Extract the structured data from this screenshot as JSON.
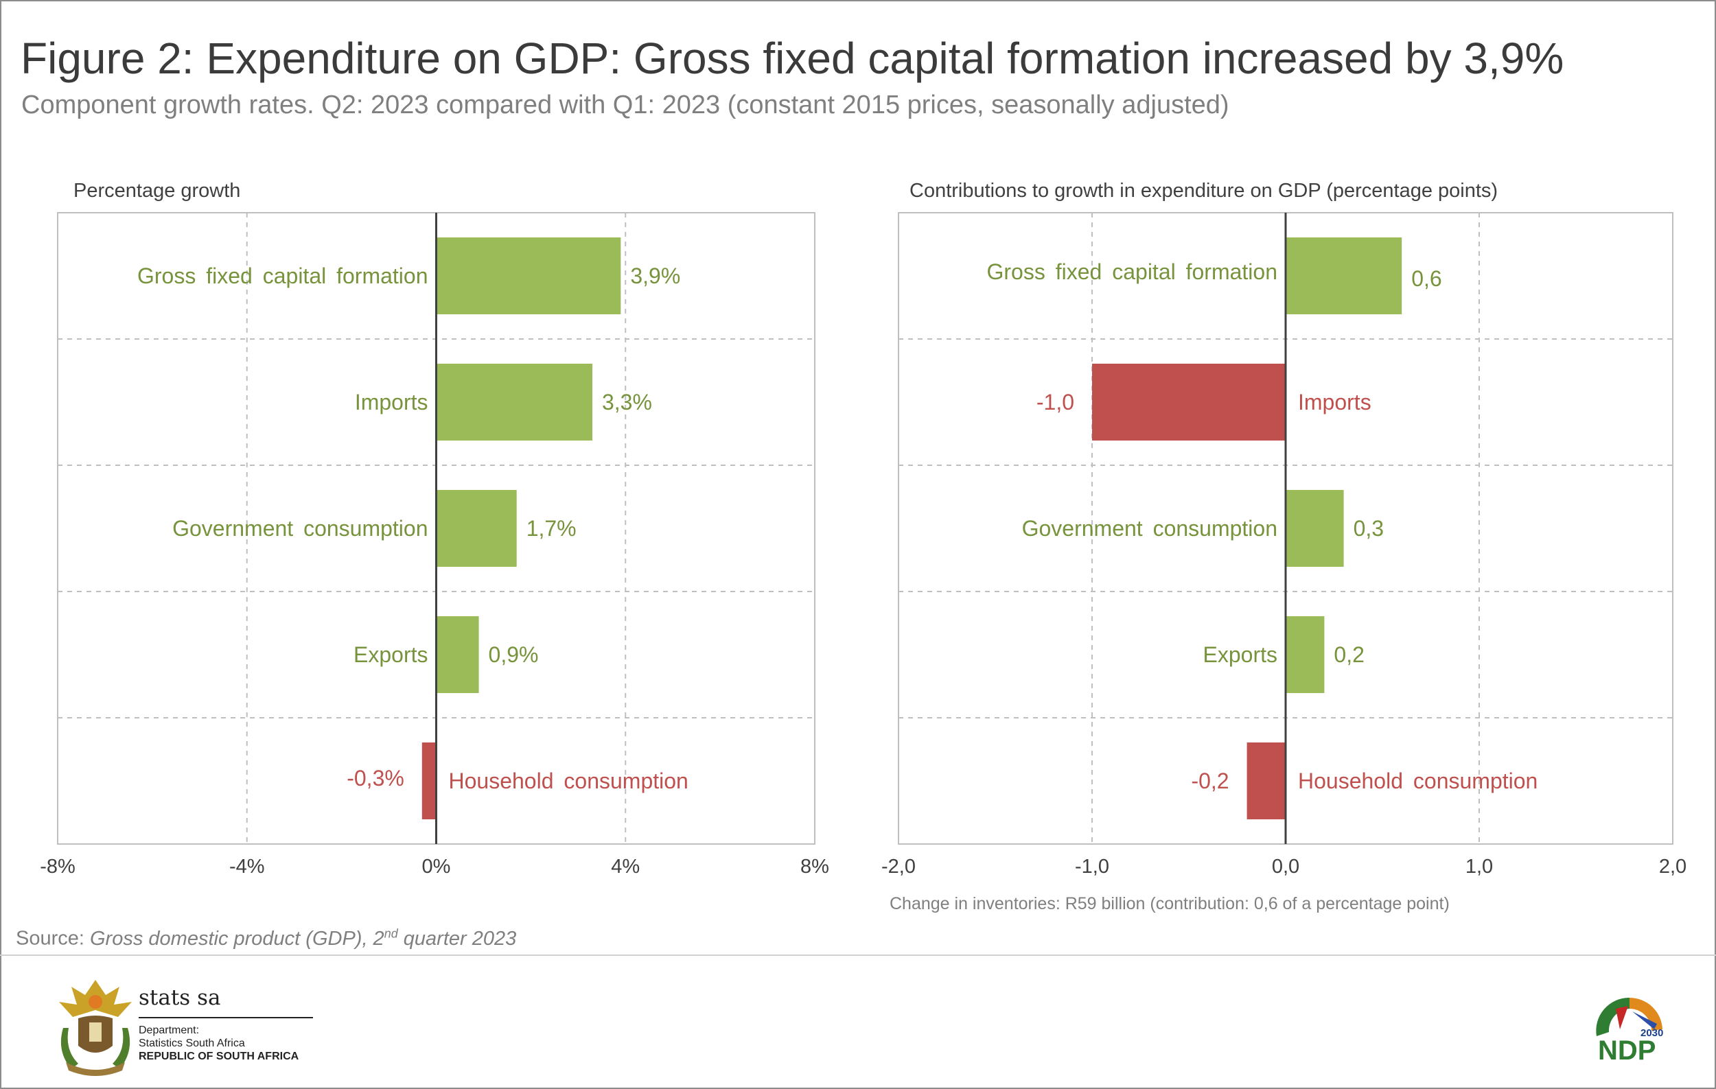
{
  "title": "Figure 2: Expenditure on GDP: Gross fixed capital formation increased by 3,9%",
  "subtitle": "Component growth rates. Q2: 2023 compared with Q1: 2023 (constant 2015 prices, seasonally adjusted)",
  "colors": {
    "positive": "#9bbb59",
    "negative": "#c0504d",
    "text_positive": "#77933c",
    "text_negative": "#c0504d"
  },
  "chart_data": [
    {
      "type": "bar",
      "orientation": "horizontal",
      "panel_title": "Percentage growth",
      "categories": [
        "Gross fixed capital formation",
        "Imports",
        "Government consumption",
        "Exports",
        "Household consumption"
      ],
      "values": [
        3.9,
        3.3,
        1.7,
        0.9,
        -0.3
      ],
      "value_labels": [
        "3,9%",
        "3,3%",
        "1,7%",
        "0,9%",
        "-0,3%"
      ],
      "xlim": [
        -8,
        8
      ],
      "tick_values": [
        -8,
        -4,
        0,
        4,
        8
      ],
      "tick_labels": [
        "-8%",
        "-4%",
        "0%",
        "4%",
        "8%"
      ],
      "grid": true
    },
    {
      "type": "bar",
      "orientation": "horizontal",
      "panel_title": "Contributions to growth in expenditure on GDP (percentage points)",
      "categories": [
        "Gross fixed capital formation",
        "Imports",
        "Government consumption",
        "Exports",
        "Household consumption"
      ],
      "values": [
        0.6,
        -1.0,
        0.3,
        0.2,
        -0.2
      ],
      "value_labels": [
        "0,6",
        "-1,0",
        "0,3",
        "0,2",
        "-0,2"
      ],
      "xlim": [
        -2,
        2
      ],
      "tick_values": [
        -2,
        -1,
        0,
        1,
        2
      ],
      "tick_labels": [
        "-2,0",
        "-1,0",
        "0,0",
        "1,0",
        "2,0"
      ],
      "grid": true
    }
  ],
  "footnote": "Change in inventories: R59 billion (contribution: 0,6 of a percentage point)",
  "source": {
    "prefix": "Source: ",
    "title": "Gross domestic product (GDP), 2",
    "sup": "nd",
    "suffix": " quarter 2023"
  },
  "logo": {
    "name": "stats sa",
    "line1": "Department:",
    "line2": "Statistics South Africa",
    "line3": "REPUBLIC OF SOUTH AFRICA",
    "ndp_year": "2030",
    "ndp_text": "NDP"
  }
}
